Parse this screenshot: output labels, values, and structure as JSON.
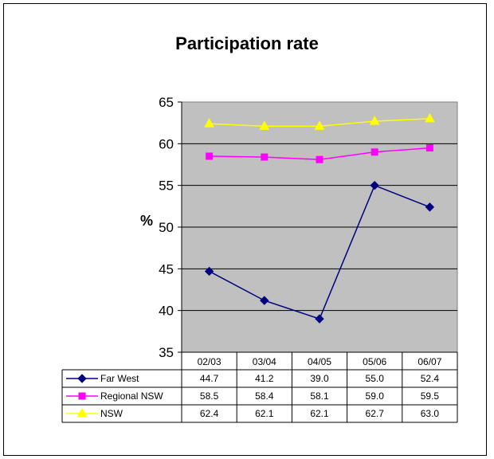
{
  "chart_data": {
    "type": "line",
    "title": "Participation rate",
    "ylabel": "%",
    "xlabel": "",
    "categories": [
      "02/03",
      "03/04",
      "04/05",
      "05/06",
      "06/07"
    ],
    "ylim": [
      35,
      65
    ],
    "yticks": [
      35,
      40,
      45,
      50,
      55,
      60,
      65
    ],
    "grid": true,
    "legend": "data-table",
    "plot_background": "#c0c0c0",
    "series": [
      {
        "name": "Far West",
        "values": [
          44.7,
          41.2,
          39.0,
          55.0,
          52.4
        ],
        "value_labels": [
          "44.7",
          "41.2",
          "39.0",
          "55.0",
          "52.4"
        ],
        "color": "#000080",
        "marker": "diamond"
      },
      {
        "name": "Regional NSW",
        "values": [
          58.5,
          58.4,
          58.1,
          59.0,
          59.5
        ],
        "value_labels": [
          "58.5",
          "58.4",
          "58.1",
          "59.0",
          "59.5"
        ],
        "color": "#ff00ff",
        "marker": "square"
      },
      {
        "name": "NSW",
        "values": [
          62.4,
          62.1,
          62.1,
          62.7,
          63.0
        ],
        "value_labels": [
          "62.4",
          "62.1",
          "62.1",
          "62.7",
          "63.0"
        ],
        "color": "#ffff00",
        "marker": "triangle"
      }
    ]
  }
}
